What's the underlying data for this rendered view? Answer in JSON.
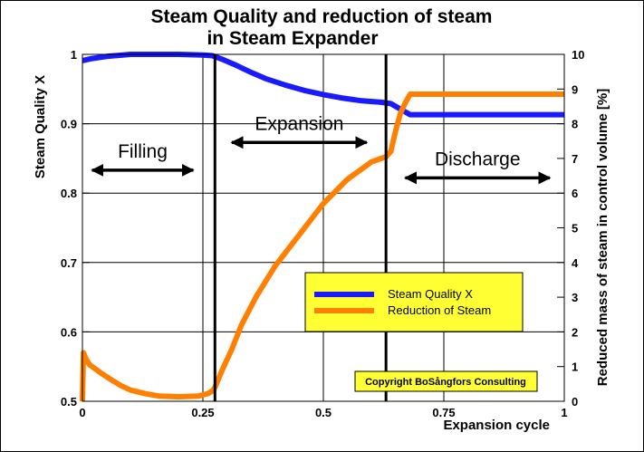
{
  "chart_data": {
    "type": "line",
    "title_line1": "Steam Quality and reduction of steam",
    "title_line2": "in Steam Expander",
    "xlabel": "Expansion cycle",
    "ylabel_left": "Steam Quality X",
    "ylabel_right": "Reduced mass of steam in control volume  [%]",
    "xlim": [
      0,
      1
    ],
    "ylim_left": [
      0.5,
      1
    ],
    "ylim_right": [
      0,
      10
    ],
    "x_ticks": [
      "0",
      "0.25",
      "0.5",
      "0.75",
      "1"
    ],
    "y_left_ticks": [
      "0.5",
      "0.6",
      "0.7",
      "0.8",
      "0.9",
      "1"
    ],
    "y_right_ticks": [
      "0",
      "1",
      "2",
      "3",
      "4",
      "5",
      "6",
      "7",
      "8",
      "9",
      "10"
    ],
    "grid": true,
    "legend_position": "lower-right",
    "series": [
      {
        "name": "Steam Quality X",
        "axis": "left",
        "color": "#1a1aff",
        "x": [
          0,
          0.02,
          0.05,
          0.1,
          0.15,
          0.2,
          0.25,
          0.27,
          0.29,
          0.32,
          0.35,
          0.38,
          0.42,
          0.46,
          0.5,
          0.54,
          0.58,
          0.62,
          0.64,
          0.66,
          0.68,
          0.75,
          0.85,
          1.0
        ],
        "values": [
          0.991,
          0.994,
          0.997,
          1.0,
          1.0,
          1.0,
          0.999,
          0.998,
          0.993,
          0.984,
          0.974,
          0.965,
          0.956,
          0.948,
          0.942,
          0.937,
          0.933,
          0.931,
          0.929,
          0.921,
          0.913,
          0.913,
          0.913,
          0.913
        ]
      },
      {
        "name": "Reduction of Steam",
        "axis": "right",
        "color": "#ff8000",
        "x": [
          0,
          0.002,
          0.008,
          0.015,
          0.025,
          0.04,
          0.06,
          0.08,
          0.1,
          0.13,
          0.16,
          0.2,
          0.24,
          0.26,
          0.27,
          0.275,
          0.29,
          0.31,
          0.33,
          0.36,
          0.4,
          0.45,
          0.5,
          0.55,
          0.6,
          0.63,
          0.64,
          0.65,
          0.66,
          0.67,
          0.68,
          0.75,
          0.85,
          1.0
        ],
        "values": [
          0,
          1.4,
          1.2,
          1.05,
          0.95,
          0.8,
          0.62,
          0.45,
          0.32,
          0.22,
          0.15,
          0.13,
          0.15,
          0.22,
          0.3,
          0.4,
          0.9,
          1.5,
          2.2,
          3.0,
          3.9,
          4.8,
          5.7,
          6.4,
          6.9,
          7.05,
          7.2,
          7.8,
          8.3,
          8.6,
          8.85,
          8.85,
          8.85,
          8.85
        ]
      }
    ],
    "vertical_markers_x": [
      0.275,
      0.63
    ],
    "annotations": [
      {
        "text": "Filling",
        "arrow_x": [
          0.02,
          0.23
        ],
        "arrow_y": 0.833
      },
      {
        "text": "Expansion",
        "arrow_x": [
          0.31,
          0.59
        ],
        "arrow_y": 0.873
      },
      {
        "text": "Discharge",
        "arrow_x": [
          0.67,
          0.97
        ],
        "arrow_y": 0.822
      }
    ],
    "copyright": "Copyright BoSångfors Consulting"
  }
}
